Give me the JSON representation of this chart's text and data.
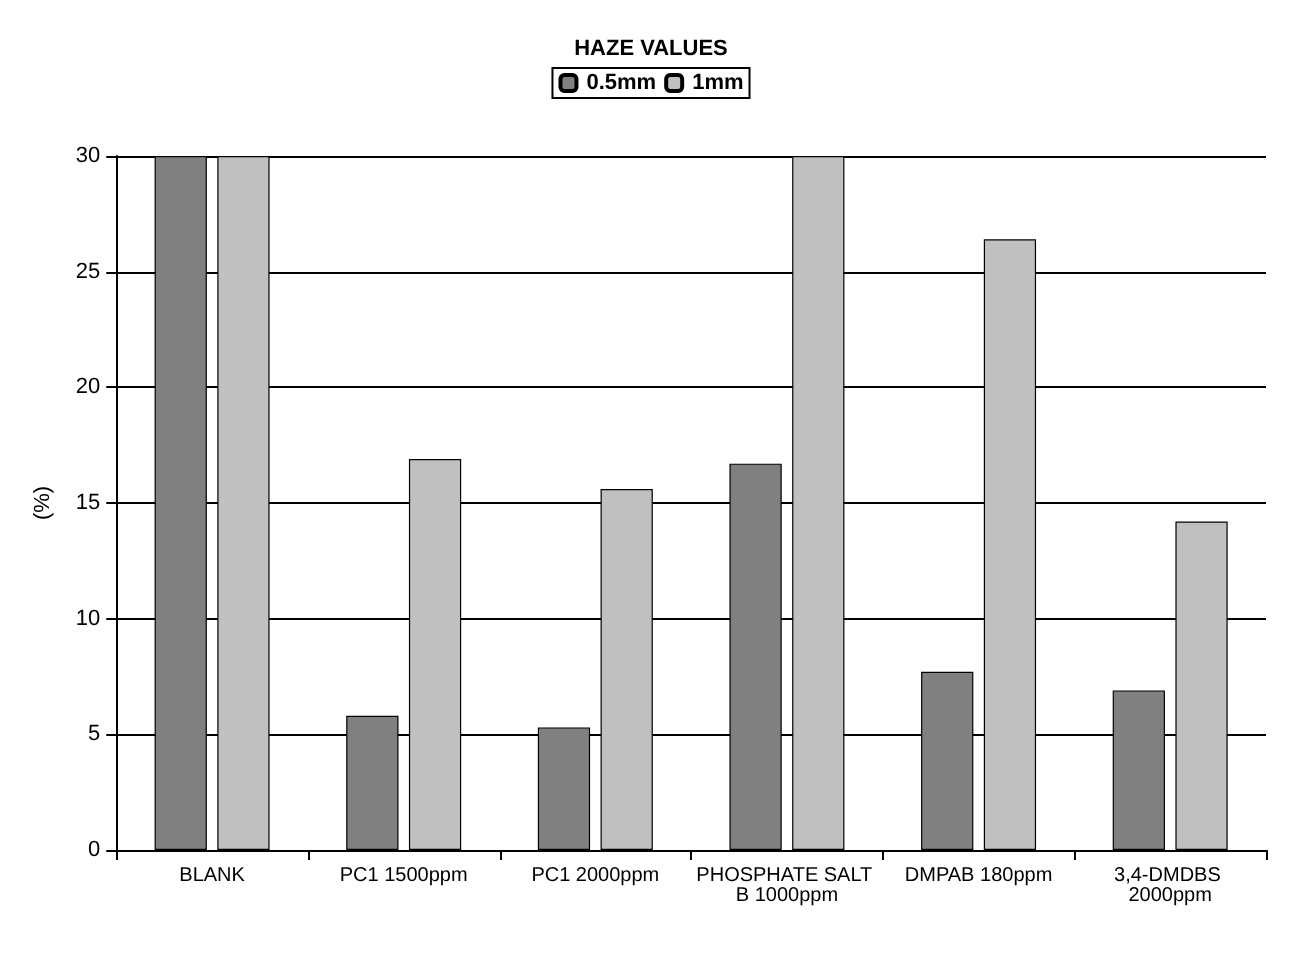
{
  "chart_data": {
    "type": "bar",
    "title": "HAZE VALUES",
    "ylabel": "(%)",
    "categories": [
      "BLANK",
      "PC1 1500ppm",
      "PC1 2000ppm",
      "PHOSPHATE SALT B 1000ppm",
      "DMPAB 180ppm",
      "3,4-DMDBS 2000ppm"
    ],
    "series": [
      {
        "name": "0.5mm",
        "color": "#808080",
        "values": [
          30,
          5.8,
          5.3,
          16.7,
          7.7,
          6.9
        ]
      },
      {
        "name": "1mm",
        "color": "#c0c0c0",
        "values": [
          30,
          16.9,
          15.6,
          30,
          26.4,
          14.2
        ]
      }
    ],
    "ylim": [
      0,
      30
    ],
    "yticks": [
      0,
      5,
      10,
      15,
      20,
      25,
      30
    ],
    "grid": "y",
    "legend": "top"
  }
}
